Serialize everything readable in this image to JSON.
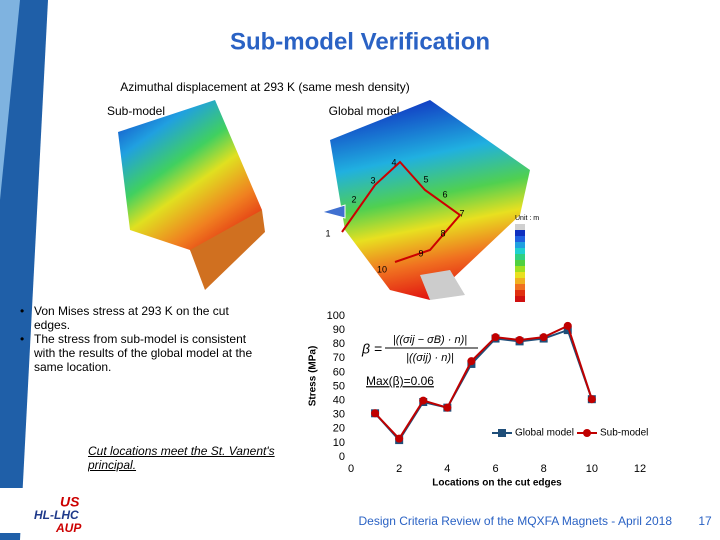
{
  "slide": {
    "title": "Sub-model Verification",
    "subtitle": "Azimuthal displacement at 293 K (same mesh density)",
    "submodel_label": "Sub-model",
    "global_label": "Global model",
    "unit_label": "Unit : m",
    "locations": [
      "1",
      "2",
      "3",
      "4",
      "5",
      "6",
      "7",
      "8",
      "9",
      "10"
    ],
    "bullets": [
      "Von Mises stress at 293 K on the cut edges.",
      "The stress from sub-model is consistent with the results of the global model at the same location."
    ],
    "note": "Cut locations meet the St. Vanent's principal.",
    "footer": "Design Criteria Review of the MQXFA Magnets - April 2018",
    "page": "17",
    "logo": [
      "US",
      "HL-LHC",
      "AUP"
    ]
  },
  "chart_data": {
    "type": "line",
    "x_label": "Locations on the cut edges",
    "y_label": "Stress (MPa)",
    "annotations": [
      "Max(β)=0.06"
    ],
    "formula": {
      "lhs": "β =",
      "numerator": "|((σij − σB) · n)|",
      "denominator": "|((σij) · n)|"
    },
    "x": [
      1,
      2,
      3,
      4,
      5,
      6,
      7,
      8,
      9,
      10
    ],
    "series": [
      {
        "name": "Global model",
        "color": "#1f4e79",
        "marker": "square",
        "values": [
          31,
          12,
          39,
          35,
          66,
          84,
          82,
          84,
          90,
          41
        ]
      },
      {
        "name": "Sub-model",
        "color": "#c00000",
        "marker": "circle",
        "values": [
          31,
          13,
          40,
          35,
          68,
          85,
          83,
          85,
          93,
          41
        ]
      }
    ],
    "xlim": [
      0,
      12
    ],
    "xticks": [
      0,
      2,
      4,
      6,
      8,
      10,
      12
    ],
    "ylim": [
      0,
      100
    ],
    "yticks": [
      0,
      10,
      20,
      30,
      40,
      50,
      60,
      70,
      80,
      90,
      100
    ],
    "legend": "lower right"
  }
}
